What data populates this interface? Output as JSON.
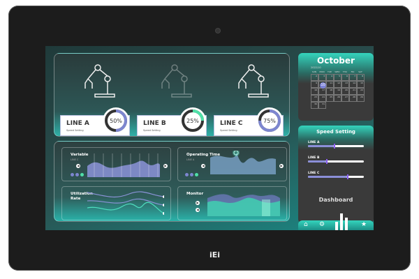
{
  "device": {
    "brand": "iEi"
  },
  "lines": [
    {
      "name": "LINE A",
      "sub": "Speed Setting",
      "percent": 50,
      "pct_label": "50%",
      "color": "#7d86d0",
      "active": true
    },
    {
      "name": "LINE B",
      "sub": "Speed Setting",
      "percent": 25,
      "pct_label": "25%",
      "color": "#4fe0a8",
      "active": false
    },
    {
      "name": "LINE C",
      "sub": "Speed Setting",
      "percent": 75,
      "pct_label": "75%",
      "color": "#7d86d0",
      "active": true
    }
  ],
  "panels": {
    "variable": {
      "title": "Variable",
      "sub": "LINE C"
    },
    "operating": {
      "title": "Operating Time",
      "sub": "LINE A"
    },
    "utilization": {
      "title": "Utilization Rate"
    },
    "monitor": {
      "title": "Monitor"
    }
  },
  "calendar": {
    "month": "October",
    "year_month": "2022/10",
    "weekdays": [
      "SUN",
      "MON",
      "TUE",
      "WED",
      "THU",
      "FRI",
      "SAT"
    ],
    "days": [
      "2",
      "3",
      "4",
      "5",
      "6",
      "7",
      "8",
      "9",
      "10",
      "11",
      "12",
      "13",
      "14",
      "15",
      "16",
      "17",
      "18",
      "19",
      "20",
      "21",
      "22",
      "23",
      "24",
      "25",
      "26",
      "27",
      "28",
      "29",
      "30",
      "31"
    ],
    "today": "10",
    "accent": "#34d4bd"
  },
  "speed": {
    "title": "Speed Setting",
    "sliders": [
      {
        "label": "LINE A",
        "value": 0.46
      },
      {
        "label": "LINE B",
        "value": 0.33
      },
      {
        "label": "LINE C",
        "value": 0.7
      }
    ]
  },
  "dashboard_label": "Dashboard",
  "nav": {
    "icons": [
      "home-icon",
      "gear-icon",
      "bar-chart-icon",
      "star-icon"
    ]
  }
}
